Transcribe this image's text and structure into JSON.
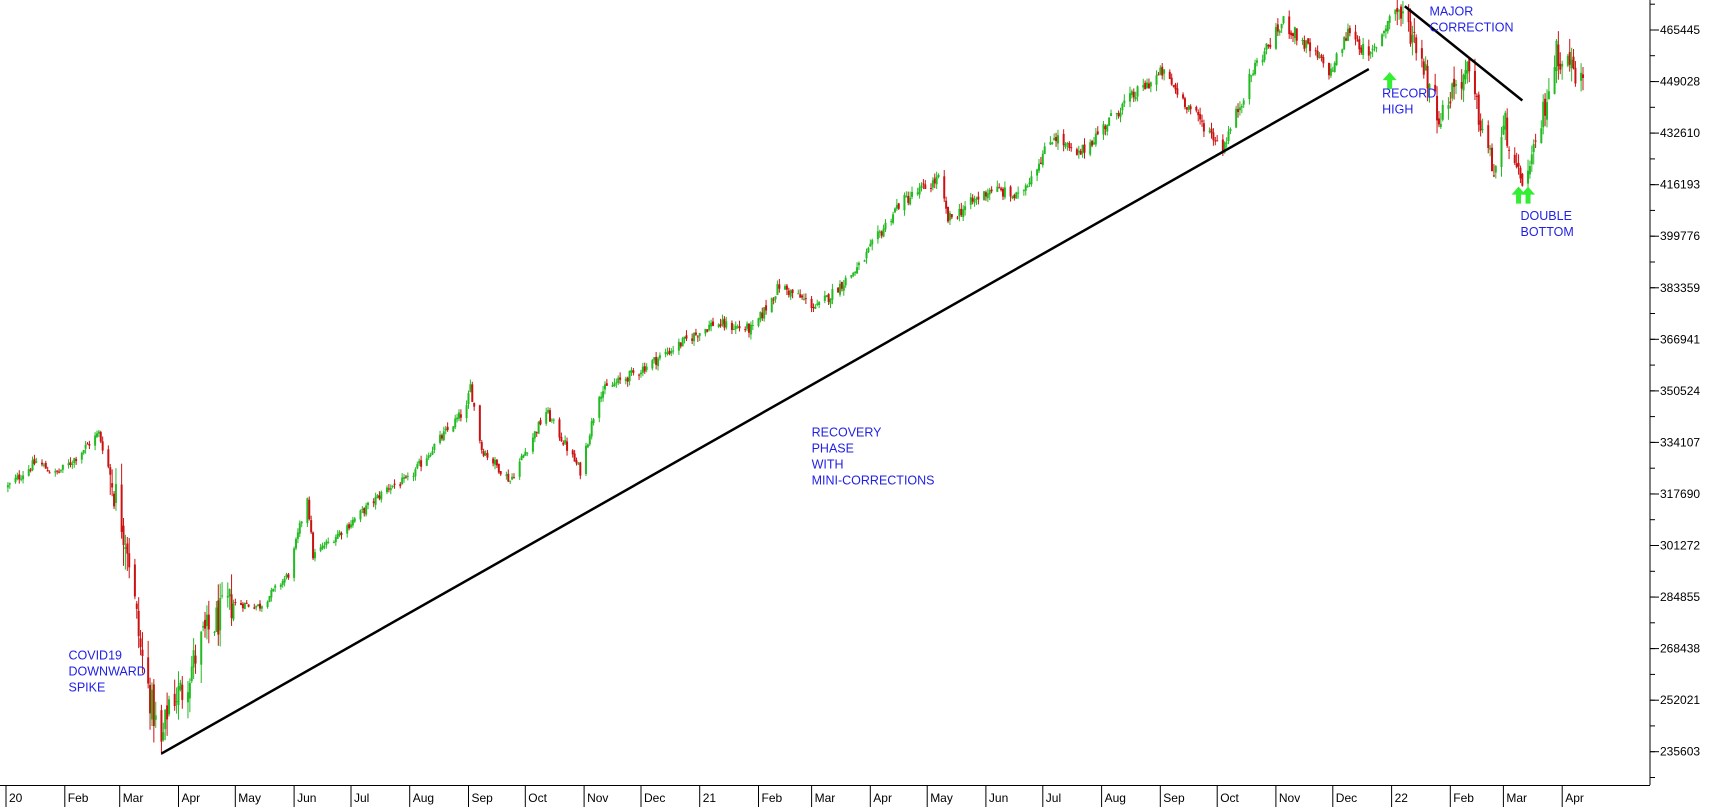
{
  "chart_data": {
    "type": "candlestick",
    "title": "",
    "xlabel": "",
    "ylabel": "",
    "x_range": [
      "2020-01-01",
      "2022-04-12"
    ],
    "ylim": [
      225000,
      475000
    ],
    "y_ticks": [
      235603,
      252021,
      268438,
      284855,
      301272,
      317690,
      334107,
      350524,
      366941,
      383359,
      399776,
      416193,
      432610,
      449028,
      465445
    ],
    "y_axis_position": "right",
    "grid": false,
    "legend": "none",
    "colors": {
      "up": "#22bb22",
      "down": "#cc1111",
      "annotation_text": "#1f1fe6",
      "trendline": "#000000",
      "arrow": "#33ee33"
    },
    "x_ticks": [
      {
        "date": "2020-01-01",
        "label": "20"
      },
      {
        "date": "2020-02-01",
        "label": "Feb"
      },
      {
        "date": "2020-03-01",
        "label": "Mar"
      },
      {
        "date": "2020-04-01",
        "label": "Apr"
      },
      {
        "date": "2020-05-01",
        "label": "May"
      },
      {
        "date": "2020-06-01",
        "label": "Jun"
      },
      {
        "date": "2020-07-01",
        "label": "Jul"
      },
      {
        "date": "2020-08-01",
        "label": "Aug"
      },
      {
        "date": "2020-09-01",
        "label": "Sep"
      },
      {
        "date": "2020-10-01",
        "label": "Oct"
      },
      {
        "date": "2020-11-01",
        "label": "Nov"
      },
      {
        "date": "2020-12-01",
        "label": "Dec"
      },
      {
        "date": "2021-01-01",
        "label": "21"
      },
      {
        "date": "2021-02-01",
        "label": "Feb"
      },
      {
        "date": "2021-03-01",
        "label": "Mar"
      },
      {
        "date": "2021-04-01",
        "label": "Apr"
      },
      {
        "date": "2021-05-01",
        "label": "May"
      },
      {
        "date": "2021-06-01",
        "label": "Jun"
      },
      {
        "date": "2021-07-01",
        "label": "Jul"
      },
      {
        "date": "2021-08-01",
        "label": "Aug"
      },
      {
        "date": "2021-09-01",
        "label": "Sep"
      },
      {
        "date": "2021-10-01",
        "label": "Oct"
      },
      {
        "date": "2021-11-01",
        "label": "Nov"
      },
      {
        "date": "2021-12-01",
        "label": "Dec"
      },
      {
        "date": "2022-01-01",
        "label": "22"
      },
      {
        "date": "2022-02-01",
        "label": "Feb"
      },
      {
        "date": "2022-03-01",
        "label": "Mar"
      },
      {
        "date": "2022-04-01",
        "label": "Apr"
      }
    ],
    "price_path": [
      {
        "date": "2020-01-02",
        "close": 320000
      },
      {
        "date": "2020-01-17",
        "close": 328000
      },
      {
        "date": "2020-01-27",
        "close": 324000
      },
      {
        "date": "2020-02-03",
        "close": 327000
      },
      {
        "date": "2020-02-19",
        "close": 337000
      },
      {
        "date": "2020-02-26",
        "close": 322000
      },
      {
        "date": "2020-03-05",
        "close": 302000
      },
      {
        "date": "2020-03-12",
        "close": 268000
      },
      {
        "date": "2020-03-18",
        "close": 250000
      },
      {
        "date": "2020-03-23",
        "close": 237000
      },
      {
        "date": "2020-03-27",
        "close": 252000
      },
      {
        "date": "2020-04-03",
        "close": 255000
      },
      {
        "date": "2020-04-14",
        "close": 272000
      },
      {
        "date": "2020-04-29",
        "close": 283000
      },
      {
        "date": "2020-05-14",
        "close": 282000
      },
      {
        "date": "2020-05-29",
        "close": 292000
      },
      {
        "date": "2020-06-08",
        "close": 317000
      },
      {
        "date": "2020-06-11",
        "close": 298000
      },
      {
        "date": "2020-06-30",
        "close": 308000
      },
      {
        "date": "2020-07-21",
        "close": 320000
      },
      {
        "date": "2020-07-31",
        "close": 322000
      },
      {
        "date": "2020-08-14",
        "close": 333000
      },
      {
        "date": "2020-08-31",
        "close": 345000
      },
      {
        "date": "2020-09-02",
        "close": 352000
      },
      {
        "date": "2020-09-08",
        "close": 332000
      },
      {
        "date": "2020-09-23",
        "close": 322000
      },
      {
        "date": "2020-10-12",
        "close": 344000
      },
      {
        "date": "2020-10-30",
        "close": 325000
      },
      {
        "date": "2020-11-09",
        "close": 350000
      },
      {
        "date": "2020-11-30",
        "close": 357000
      },
      {
        "date": "2020-12-18",
        "close": 364000
      },
      {
        "date": "2021-01-08",
        "close": 372000
      },
      {
        "date": "2021-01-29",
        "close": 370000
      },
      {
        "date": "2021-02-12",
        "close": 384000
      },
      {
        "date": "2021-03-04",
        "close": 377000
      },
      {
        "date": "2021-03-26",
        "close": 390000
      },
      {
        "date": "2021-04-16",
        "close": 410000
      },
      {
        "date": "2021-05-07",
        "close": 418000
      },
      {
        "date": "2021-05-12",
        "close": 405000
      },
      {
        "date": "2021-06-04",
        "close": 415000
      },
      {
        "date": "2021-06-18",
        "close": 412000
      },
      {
        "date": "2021-07-07",
        "close": 432000
      },
      {
        "date": "2021-07-19",
        "close": 425000
      },
      {
        "date": "2021-08-13",
        "close": 442000
      },
      {
        "date": "2021-09-02",
        "close": 452000
      },
      {
        "date": "2021-09-20",
        "close": 438000
      },
      {
        "date": "2021-10-04",
        "close": 428000
      },
      {
        "date": "2021-10-21",
        "close": 454000
      },
      {
        "date": "2021-11-05",
        "close": 468000
      },
      {
        "date": "2021-11-30",
        "close": 452000
      },
      {
        "date": "2021-12-10",
        "close": 466000
      },
      {
        "date": "2021-12-20",
        "close": 456000
      },
      {
        "date": "2022-01-03",
        "close": 473000
      },
      {
        "date": "2022-01-14",
        "close": 462000
      },
      {
        "date": "2022-01-27",
        "close": 437000
      },
      {
        "date": "2022-02-02",
        "close": 447000
      },
      {
        "date": "2022-02-10",
        "close": 452000
      },
      {
        "date": "2022-02-24",
        "close": 420000
      },
      {
        "date": "2022-03-02",
        "close": 435000
      },
      {
        "date": "2022-03-08",
        "close": 418000
      },
      {
        "date": "2022-03-15",
        "close": 420000
      },
      {
        "date": "2022-03-29",
        "close": 458000
      },
      {
        "date": "2022-04-05",
        "close": 455000
      },
      {
        "date": "2022-04-12",
        "close": 448000
      }
    ],
    "trendlines": [
      {
        "name": "uptrend",
        "from": {
          "date": "2020-03-23",
          "value": 235000
        },
        "to": {
          "date": "2021-12-20",
          "value": 453000
        }
      },
      {
        "name": "downtrend",
        "from": {
          "date": "2022-01-08",
          "value": 473000
        },
        "to": {
          "date": "2022-03-11",
          "value": 443000
        }
      }
    ],
    "annotations": [
      {
        "lines": [
          "COVID19",
          "DOWNWARD",
          "SPIKE"
        ],
        "date": "2020-02-03",
        "value": 265000
      },
      {
        "lines": [
          "RECOVERY",
          "PHASE",
          "WITH",
          "MINI-CORRECTIONS"
        ],
        "date": "2021-03-01",
        "value": 336000
      },
      {
        "lines": [
          "RECORD",
          "HIGH"
        ],
        "date": "2021-12-27",
        "value": 444000
      },
      {
        "lines": [
          "MAJOR",
          "CORRECTION"
        ],
        "date": "2022-01-21",
        "value": 470000
      },
      {
        "lines": [
          "DOUBLE",
          "BOTTOM"
        ],
        "date": "2022-03-10",
        "value": 405000
      }
    ],
    "markers": [
      {
        "shape": "up-arrow",
        "date": "2021-12-31",
        "value": 449500
      },
      {
        "shape": "up-arrow",
        "date": "2022-03-09",
        "value": 413000
      },
      {
        "shape": "up-arrow",
        "date": "2022-03-14",
        "value": 413000
      }
    ]
  }
}
